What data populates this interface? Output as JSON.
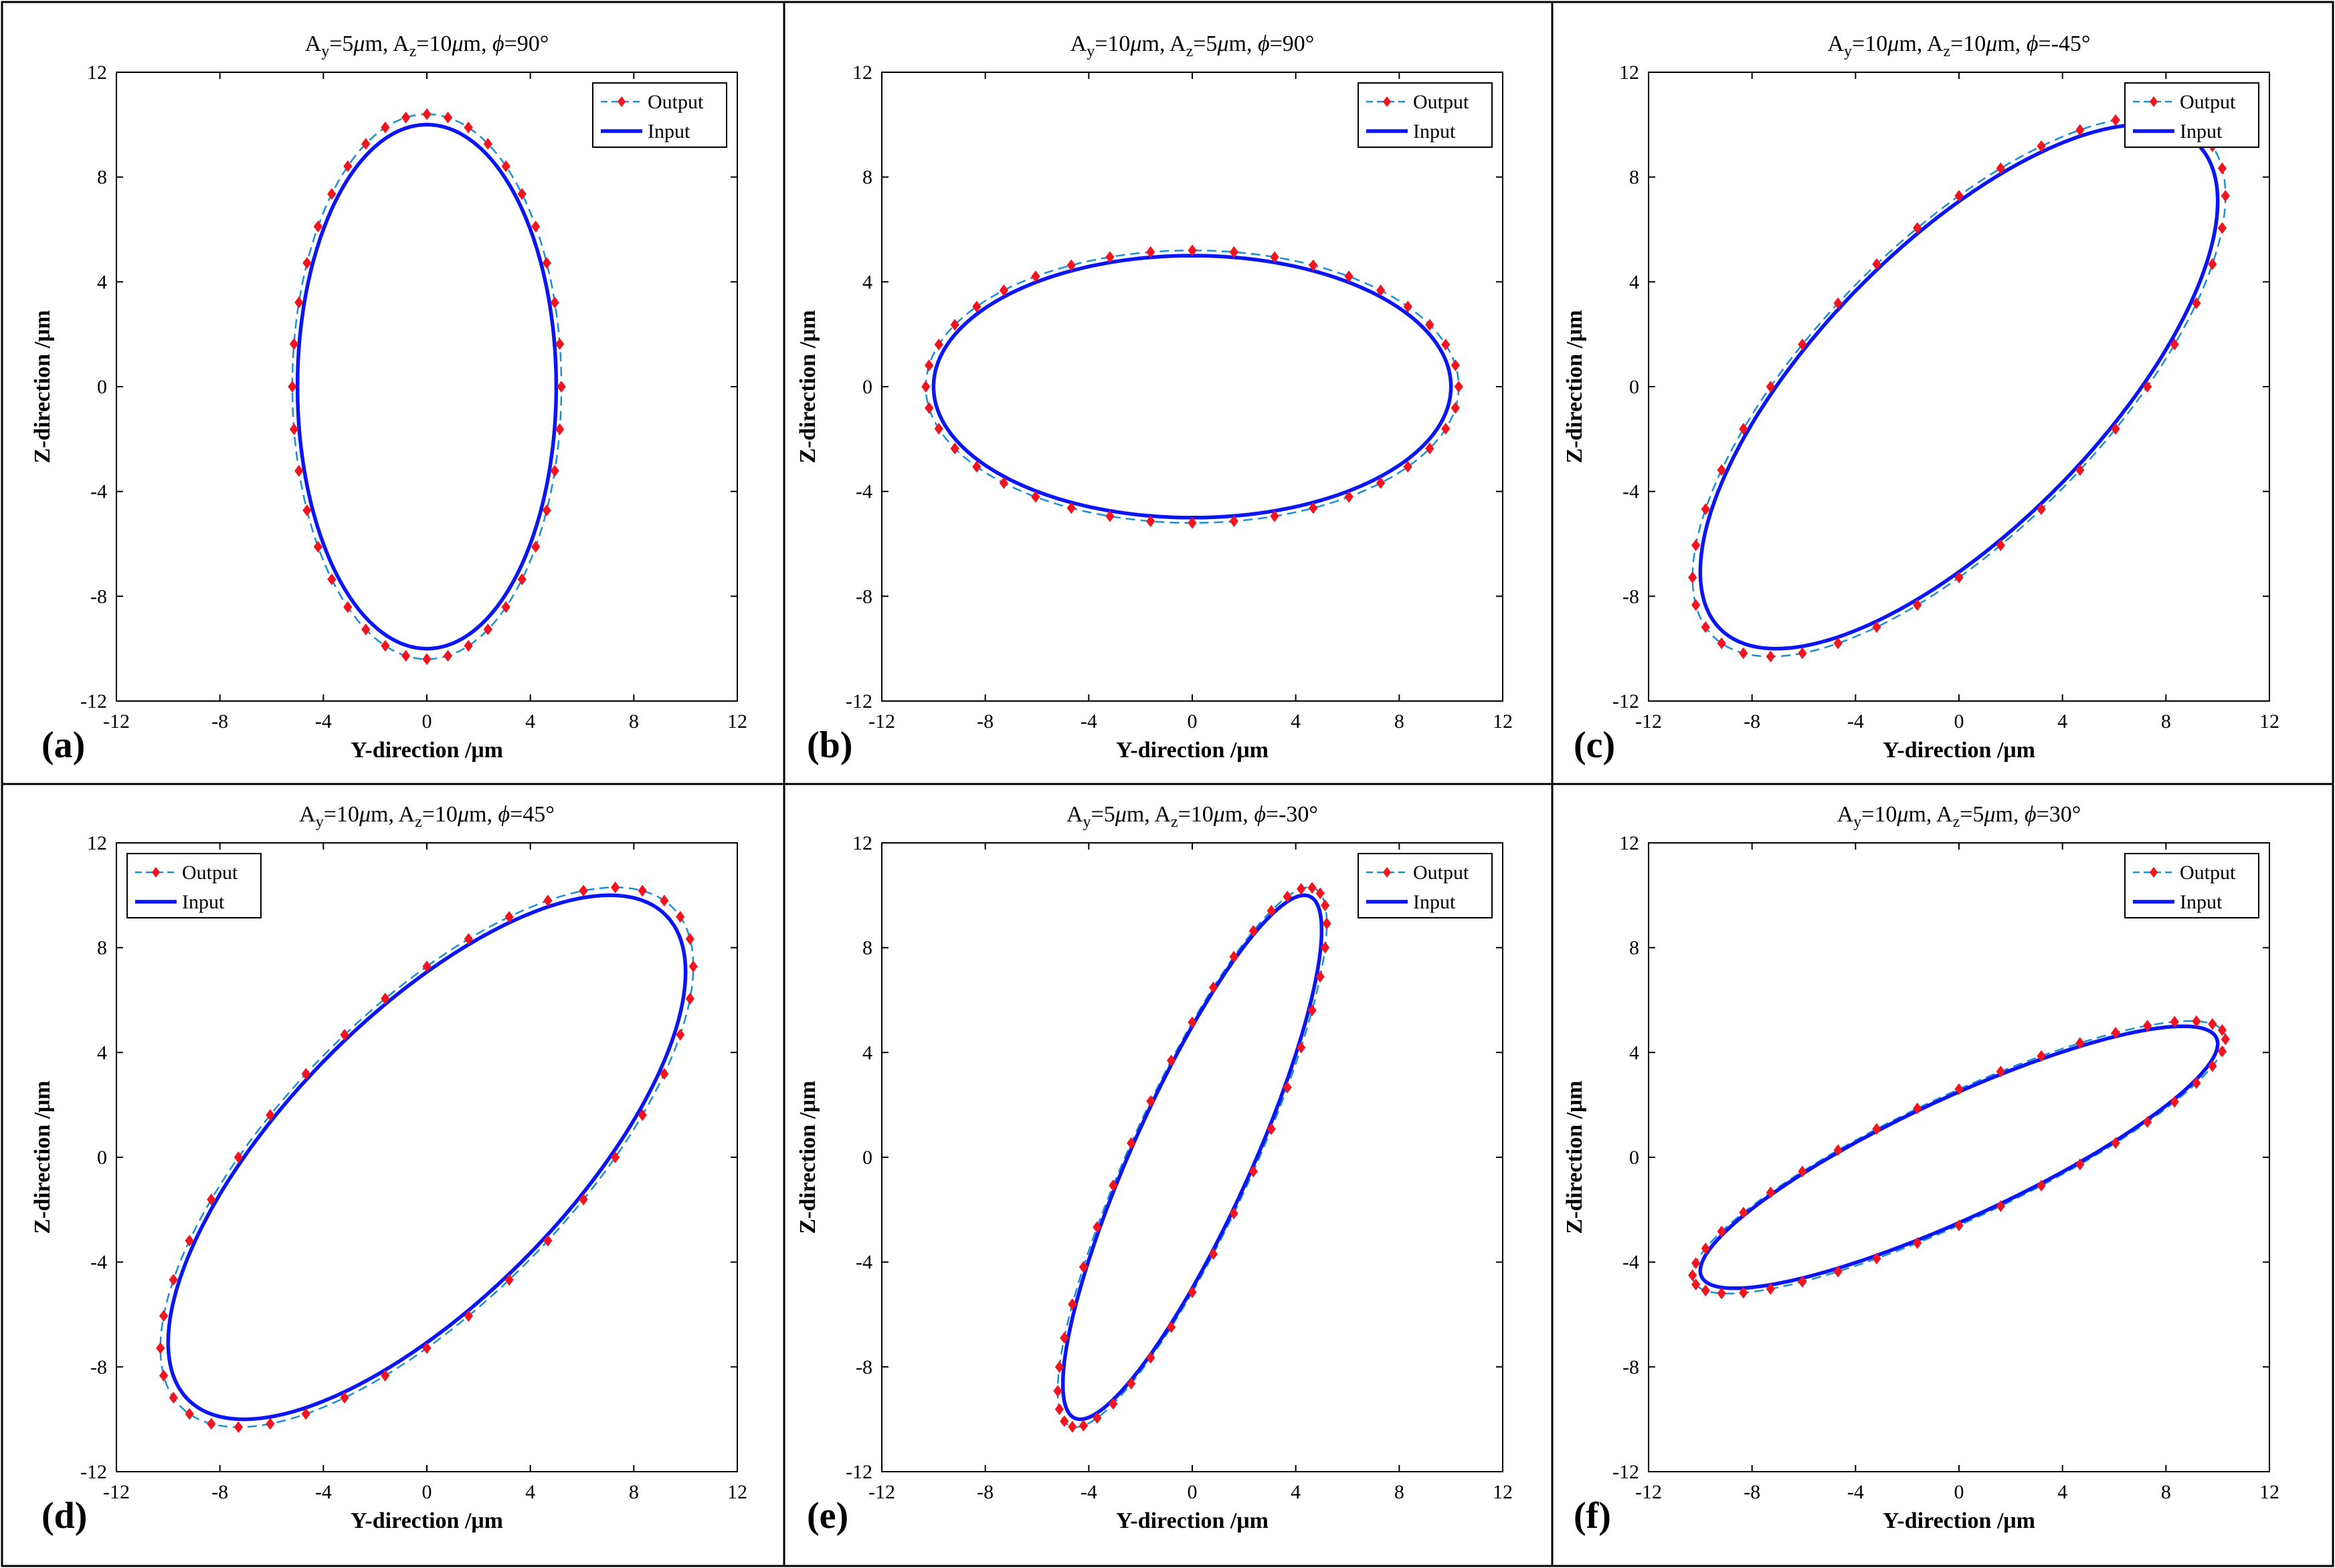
{
  "figure": {
    "shared": {
      "xlabel": "Y-direction /μm",
      "ylabel": "Z-direction /μm",
      "ticks": [
        "-12",
        "-8",
        "-4",
        "0",
        "4",
        "8",
        "12"
      ],
      "legend": {
        "output": "Output",
        "input": "Input"
      }
    },
    "colors": {
      "input": "#0a16f5",
      "output_line": "#1a8fd6",
      "output_marker": "#f2141e",
      "frame": "#000000"
    }
  },
  "chart_data": [
    {
      "type": "line",
      "panel": "(a)",
      "title": "Ay=5μm, Az=10μm, ϕ=90°",
      "title_parts": {
        "a1": "A",
        "s1": "y",
        "m1": "=5",
        "u1": "μ",
        "r1": "m, A",
        "s2": "z",
        "m2": "=10",
        "u2": "μ",
        "r2": "m, ",
        "phi": "ϕ",
        "tail": "=90°"
      },
      "xlabel": "Y-direction /μm",
      "ylabel": "Z-direction /μm",
      "xlim": [
        -12,
        12
      ],
      "ylim": [
        -12,
        12
      ],
      "legend_position": "top-right",
      "series": [
        {
          "name": "Input",
          "Ay": 5,
          "Az": 10,
          "phase_deg": 90
        },
        {
          "name": "Output",
          "Ay": 5.2,
          "Az": 10.4,
          "phase_deg": 90,
          "markers": 40
        }
      ]
    },
    {
      "type": "line",
      "panel": "(b)",
      "title": "Ay=10μm, Az=5μm, ϕ=90°",
      "title_parts": {
        "a1": "A",
        "s1": "y",
        "m1": "=10",
        "u1": "μ",
        "r1": "m, A",
        "s2": "z",
        "m2": "=5",
        "u2": "μ",
        "r2": "m, ",
        "phi": "ϕ",
        "tail": "=90°"
      },
      "xlabel": "Y-direction /μm",
      "ylabel": "Z-direction /μm",
      "xlim": [
        -12,
        12
      ],
      "ylim": [
        -12,
        12
      ],
      "legend_position": "top-right",
      "series": [
        {
          "name": "Input",
          "Ay": 10,
          "Az": 5,
          "phase_deg": 90
        },
        {
          "name": "Output",
          "Ay": 10.3,
          "Az": 5.2,
          "phase_deg": 90,
          "markers": 40
        }
      ]
    },
    {
      "type": "line",
      "panel": "(c)",
      "title": "Ay=10μm, Az=10μm, ϕ=-45°",
      "title_parts": {
        "a1": "A",
        "s1": "y",
        "m1": "=10",
        "u1": "μ",
        "r1": "m, A",
        "s2": "z",
        "m2": "=10",
        "u2": "μ",
        "r2": "m, ",
        "phi": "ϕ",
        "tail": "=-45°"
      },
      "xlabel": "Y-direction /μm",
      "ylabel": "Z-direction /μm",
      "xlim": [
        -12,
        12
      ],
      "ylim": [
        -12,
        12
      ],
      "legend_position": "top-right",
      "series": [
        {
          "name": "Input",
          "Ay": 10,
          "Az": 10,
          "phase_deg": -45
        },
        {
          "name": "Output",
          "Ay": 10.3,
          "Az": 10.3,
          "phase_deg": -45,
          "markers": 40
        }
      ]
    },
    {
      "type": "line",
      "panel": "(d)",
      "title": "Ay=10μm, Az=10μm, ϕ=45°",
      "title_parts": {
        "a1": "A",
        "s1": "y",
        "m1": "=10",
        "u1": "μ",
        "r1": "m, A",
        "s2": "z",
        "m2": "=10",
        "u2": "μ",
        "r2": "m, ",
        "phi": "ϕ",
        "tail": "=45°"
      },
      "xlabel": "Y-direction /μm",
      "ylabel": "Z-direction /μm",
      "xlim": [
        -12,
        12
      ],
      "ylim": [
        -12,
        12
      ],
      "legend_position": "top-left",
      "series": [
        {
          "name": "Input",
          "Ay": 10,
          "Az": 10,
          "phase_deg": 45
        },
        {
          "name": "Output",
          "Ay": 10.3,
          "Az": 10.3,
          "phase_deg": 45,
          "markers": 40
        }
      ]
    },
    {
      "type": "line",
      "panel": "(e)",
      "title": "Ay=5μm, Az=10μm, ϕ=-30°",
      "title_parts": {
        "a1": "A",
        "s1": "y",
        "m1": "=5",
        "u1": "μ",
        "r1": "m, A",
        "s2": "z",
        "m2": "=10",
        "u2": "μ",
        "r2": "m, ",
        "phi": "ϕ",
        "tail": "=-30°"
      },
      "xlabel": "Y-direction /μm",
      "ylabel": "Z-direction /μm",
      "xlim": [
        -12,
        12
      ],
      "ylim": [
        -12,
        12
      ],
      "legend_position": "top-right",
      "series": [
        {
          "name": "Input",
          "Ay": 5,
          "Az": 10,
          "phase_deg": -30
        },
        {
          "name": "Output",
          "Ay": 5.2,
          "Az": 10.3,
          "phase_deg": -30,
          "markers": 40
        }
      ]
    },
    {
      "type": "line",
      "panel": "(f)",
      "title": "Ay=10μm, Az=5μm, ϕ=30°",
      "title_parts": {
        "a1": "A",
        "s1": "y",
        "m1": "=10",
        "u1": "μ",
        "r1": "m, A",
        "s2": "z",
        "m2": "=5",
        "u2": "μ",
        "r2": "m, ",
        "phi": "ϕ",
        "tail": "=30°"
      },
      "xlabel": "Y-direction /μm",
      "ylabel": "Z-direction /μm",
      "xlim": [
        -12,
        12
      ],
      "ylim": [
        -12,
        12
      ],
      "legend_position": "top-right",
      "series": [
        {
          "name": "Input",
          "Ay": 10,
          "Az": 5,
          "phase_deg": 30
        },
        {
          "name": "Output",
          "Ay": 10.3,
          "Az": 5.2,
          "phase_deg": 30,
          "markers": 40
        }
      ]
    }
  ]
}
